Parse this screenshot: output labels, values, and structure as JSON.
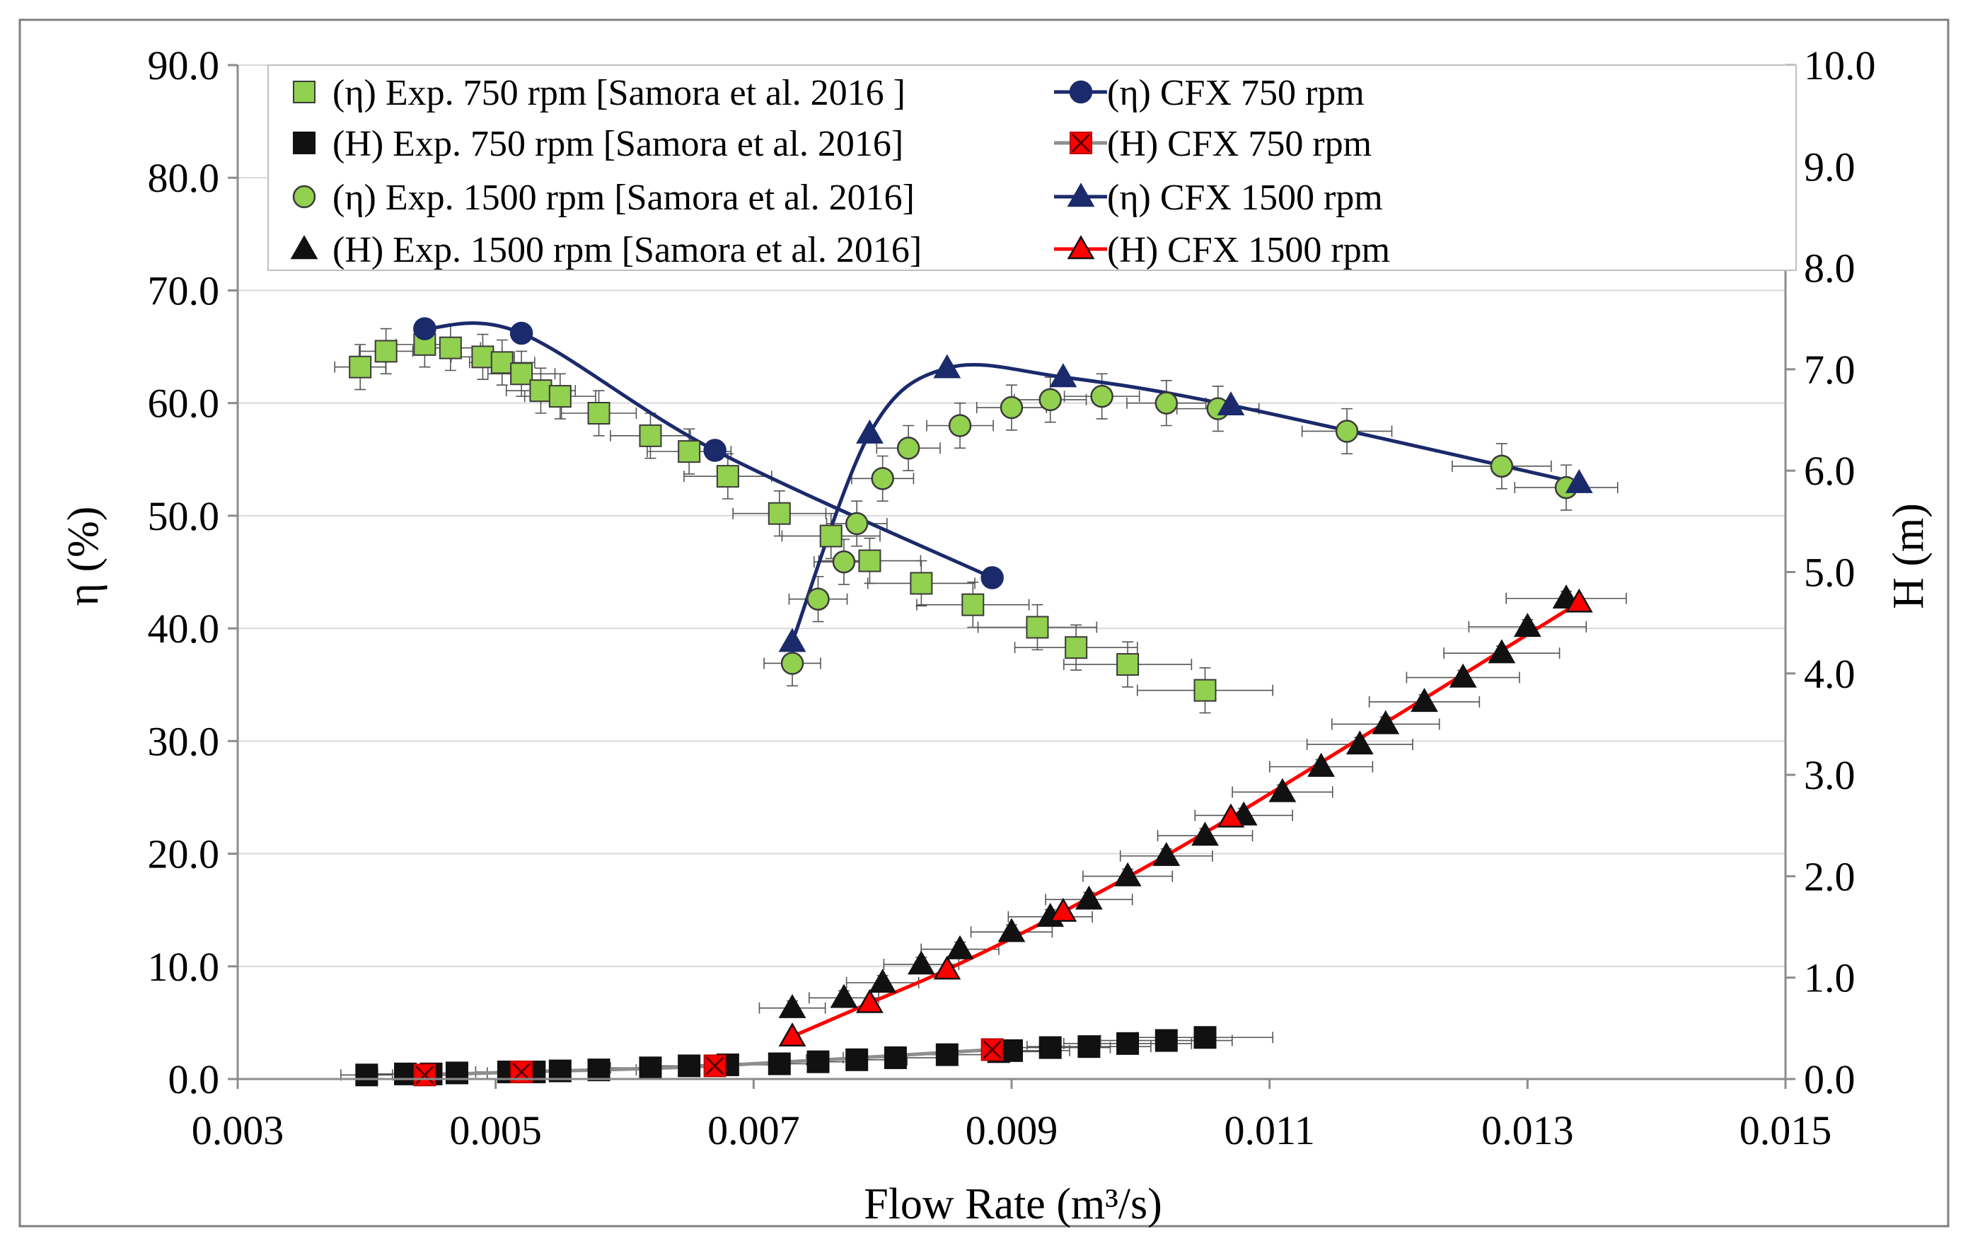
{
  "chart_data": {
    "type": "scatter",
    "title": "",
    "xlabel": "Flow Rate (m³/s)",
    "ylabel_left": "η (%)",
    "ylabel_right": "H (m)",
    "xlim": [
      0.003,
      0.015
    ],
    "ylim_left": [
      0,
      90
    ],
    "ylim_right": [
      0,
      10
    ],
    "x_ticks": [
      "0.003",
      "0.005",
      "0.007",
      "0.009",
      "0.011",
      "0.013",
      "0.015"
    ],
    "y_left_ticks": [
      "0.0",
      "10.0",
      "20.0",
      "30.0",
      "40.0",
      "50.0",
      "60.0",
      "70.0",
      "80.0",
      "90.0"
    ],
    "y_right_ticks": [
      "0.0",
      "1.0",
      "2.0",
      "3.0",
      "4.0",
      "5.0",
      "6.0",
      "7.0",
      "8.0",
      "9.0",
      "10.0"
    ],
    "grid": "horizontal",
    "legend_position": "top",
    "series": [
      {
        "name": "(η) Exp. 750 rpm [Samora et al. 2016 ]",
        "axis": "left",
        "marker": "square",
        "color": "#92D050",
        "stroke": "#3A3A3A",
        "line": false,
        "error": {
          "x_frac": 0.05,
          "y_abs": 2.0
        },
        "x": [
          0.00395,
          0.00415,
          0.00445,
          0.00465,
          0.0049,
          0.00505,
          0.0052,
          0.00535,
          0.0055,
          0.0058,
          0.0062,
          0.0065,
          0.0068,
          0.0072,
          0.0076,
          0.0079,
          0.0083,
          0.0087,
          0.0092,
          0.0095,
          0.0099,
          0.0105
        ],
        "y": [
          63.2,
          64.6,
          65.2,
          64.9,
          64.1,
          63.6,
          62.6,
          61.1,
          60.6,
          59.1,
          57.1,
          55.7,
          53.5,
          50.2,
          48.2,
          46.0,
          44.0,
          42.1,
          40.1,
          38.3,
          36.8,
          34.5
        ]
      },
      {
        "name": "(η) CFX 750 rpm",
        "axis": "left",
        "marker": "circle",
        "color": "#1B2A6B",
        "stroke": "#1B2A6B",
        "line": true,
        "line_color": "#1B2A6B",
        "x": [
          0.00445,
          0.0052,
          0.0067,
          0.00885
        ],
        "y": [
          66.6,
          66.2,
          55.8,
          44.5
        ]
      },
      {
        "name": "(H) Exp. 750 rpm [Samora et al. 2016]",
        "axis": "right",
        "marker": "square",
        "color": "#111111",
        "stroke": "#111111",
        "line": false,
        "error": {
          "x_frac": 0.05,
          "y_abs": 0
        },
        "x": [
          0.004,
          0.0043,
          0.0045,
          0.0047,
          0.0051,
          0.0053,
          0.0055,
          0.0058,
          0.0062,
          0.0065,
          0.0068,
          0.0072,
          0.0075,
          0.0078,
          0.0081,
          0.0085,
          0.0089,
          0.009,
          0.0093,
          0.0096,
          0.0099,
          0.0102,
          0.0105
        ],
        "y": [
          0.04,
          0.05,
          0.05,
          0.06,
          0.07,
          0.07,
          0.08,
          0.09,
          0.11,
          0.13,
          0.14,
          0.15,
          0.17,
          0.19,
          0.21,
          0.24,
          0.27,
          0.28,
          0.31,
          0.32,
          0.35,
          0.38,
          0.41
        ]
      },
      {
        "name": "(H) CFX 750 rpm",
        "axis": "right",
        "marker": "square-x",
        "color": "#FF0000",
        "stroke": "#C00000",
        "line": true,
        "line_color": "#8E8E8E",
        "x": [
          0.00445,
          0.0052,
          0.0067,
          0.00885
        ],
        "y": [
          0.04,
          0.07,
          0.13,
          0.29
        ]
      },
      {
        "name": "(η) Exp. 1500 rpm [Samora et al. 2016]",
        "axis": "left",
        "marker": "circle",
        "color": "#92D050",
        "stroke": "#3A3A3A",
        "line": false,
        "error": {
          "x_frac": 0.03,
          "y_abs": 2.0
        },
        "x": [
          0.0073,
          0.0075,
          0.0077,
          0.0078,
          0.008,
          0.0082,
          0.0086,
          0.009,
          0.0093,
          0.0097,
          0.0102,
          0.0106,
          0.0116,
          0.0128,
          0.0133
        ],
        "y": [
          36.9,
          42.6,
          45.9,
          49.3,
          53.3,
          56.0,
          58.0,
          59.6,
          60.3,
          60.6,
          60.0,
          59.5,
          57.5,
          54.4,
          52.5
        ]
      },
      {
        "name": "(η) CFX 1500 rpm",
        "axis": "left",
        "marker": "triangle",
        "color": "#1B2A6B",
        "stroke": "#1B2A6B",
        "line": true,
        "line_color": "#1B2A6B",
        "x": [
          0.0073,
          0.0079,
          0.0085,
          0.0094,
          0.0107,
          0.0134
        ],
        "y": [
          38.8,
          57.3,
          63.1,
          62.3,
          59.8,
          52.9
        ]
      },
      {
        "name": "(H) Exp. 1500 rpm [Samora et al. 2016]",
        "axis": "right",
        "marker": "triangle",
        "color": "#111111",
        "stroke": "#111111",
        "line": false,
        "error": {
          "x_frac": 0.035,
          "y_abs": 0.07
        },
        "x": [
          0.0073,
          0.0077,
          0.008,
          0.0083,
          0.0086,
          0.009,
          0.0093,
          0.0096,
          0.0099,
          0.0102,
          0.0105,
          0.0108,
          0.0111,
          0.0114,
          0.0117,
          0.0119,
          0.0122,
          0.0125,
          0.0128,
          0.013,
          0.0133
        ],
        "y": [
          0.7,
          0.8,
          0.95,
          1.13,
          1.28,
          1.45,
          1.6,
          1.77,
          2.0,
          2.2,
          2.4,
          2.6,
          2.83,
          3.08,
          3.3,
          3.5,
          3.72,
          3.96,
          4.2,
          4.46,
          4.74
        ]
      },
      {
        "name": "(H) CFX 1500 rpm",
        "axis": "right",
        "marker": "triangle",
        "color": "#FF0000",
        "stroke": "#111111",
        "line": true,
        "line_color": "#FF0000",
        "x": [
          0.0073,
          0.0079,
          0.0085,
          0.0094,
          0.0107,
          0.0134
        ],
        "y": [
          0.42,
          0.75,
          1.08,
          1.65,
          2.58,
          4.7
        ]
      }
    ]
  }
}
